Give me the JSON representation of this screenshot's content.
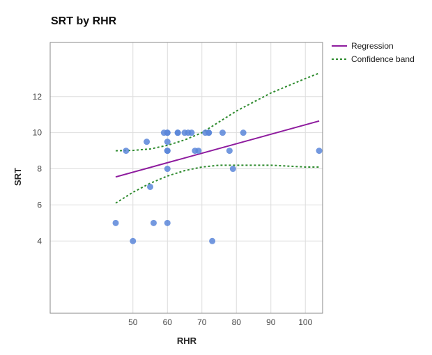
{
  "chart_data": {
    "type": "scatter",
    "title": "SRT by RHR",
    "xlabel": "RHR",
    "ylabel": "SRT",
    "xlim": [
      26,
      105
    ],
    "ylim": [
      0,
      15
    ],
    "x_ticks": [
      50,
      60,
      70,
      80,
      90,
      100
    ],
    "y_ticks": [
      4,
      6,
      8,
      10,
      12
    ],
    "grid": true,
    "legend_position": "top-right",
    "points": [
      {
        "x": 45,
        "y": 5
      },
      {
        "x": 48,
        "y": 9
      },
      {
        "x": 50,
        "y": 4
      },
      {
        "x": 54,
        "y": 9.5
      },
      {
        "x": 55,
        "y": 7
      },
      {
        "x": 56,
        "y": 5
      },
      {
        "x": 59,
        "y": 10
      },
      {
        "x": 60,
        "y": 10
      },
      {
        "x": 60,
        "y": 10
      },
      {
        "x": 60,
        "y": 9.5
      },
      {
        "x": 60,
        "y": 9
      },
      {
        "x": 60,
        "y": 9
      },
      {
        "x": 60,
        "y": 8
      },
      {
        "x": 60,
        "y": 5
      },
      {
        "x": 63,
        "y": 10
      },
      {
        "x": 63,
        "y": 10
      },
      {
        "x": 65,
        "y": 10
      },
      {
        "x": 66,
        "y": 10
      },
      {
        "x": 67,
        "y": 10
      },
      {
        "x": 68,
        "y": 9
      },
      {
        "x": 69,
        "y": 9
      },
      {
        "x": 71,
        "y": 10
      },
      {
        "x": 72,
        "y": 10
      },
      {
        "x": 72,
        "y": 10
      },
      {
        "x": 73,
        "y": 4
      },
      {
        "x": 76,
        "y": 10
      },
      {
        "x": 78,
        "y": 9
      },
      {
        "x": 79,
        "y": 8
      },
      {
        "x": 82,
        "y": 10
      },
      {
        "x": 104,
        "y": 9
      }
    ],
    "series": [
      {
        "name": "Regression",
        "style": "solid",
        "color": "#8e1b9e",
        "x": [
          45,
          104
        ],
        "y": [
          7.55,
          10.65
        ]
      },
      {
        "name": "Confidence band",
        "style": "dashed",
        "color": "#2e8b2e",
        "upper": {
          "x": [
            45,
            50,
            55,
            60,
            65,
            70,
            75,
            80,
            85,
            90,
            95,
            100,
            104
          ],
          "y": [
            9.0,
            9.02,
            9.1,
            9.3,
            9.6,
            10.0,
            10.6,
            11.2,
            11.7,
            12.2,
            12.6,
            13.0,
            13.3
          ]
        },
        "lower": {
          "x": [
            45,
            50,
            55,
            60,
            65,
            70,
            75,
            80,
            85,
            90,
            95,
            100,
            104
          ],
          "y": [
            6.1,
            6.7,
            7.2,
            7.6,
            7.9,
            8.1,
            8.2,
            8.2,
            8.2,
            8.2,
            8.15,
            8.1,
            8.1
          ]
        }
      }
    ],
    "colors": {
      "points": "#5b86d9",
      "regression": "#8e1b9e",
      "confidence": "#2e8b2e",
      "grid": "#dddddd",
      "frame": "#888888"
    }
  }
}
